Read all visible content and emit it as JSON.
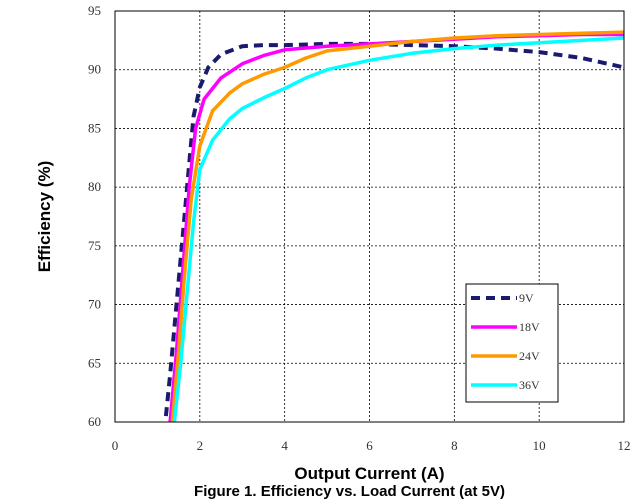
{
  "chart_data": {
    "type": "line",
    "xlabel": "Output Current (A)",
    "ylabel": "Efficiency (%)",
    "caption": "Figure 1. Efficiency vs. Load Current (at 5V)",
    "xlim": [
      0,
      12
    ],
    "ylim": [
      60,
      95
    ],
    "xticks": [
      "0",
      "2",
      "4",
      "6",
      "8",
      "10",
      "12"
    ],
    "yticks": [
      "60",
      "65",
      "70",
      "75",
      "80",
      "85",
      "90",
      "95"
    ],
    "grid": true,
    "legend_position": "bottom-right",
    "series": [
      {
        "name": "9V",
        "color": "#1a1a6e",
        "style": "dashed",
        "points": [
          [
            1.2,
            60.5
          ],
          [
            1.3,
            64
          ],
          [
            1.45,
            70
          ],
          [
            1.6,
            76
          ],
          [
            1.75,
            82
          ],
          [
            1.85,
            86
          ],
          [
            2.0,
            88.5
          ],
          [
            2.2,
            90.2
          ],
          [
            2.5,
            91.3
          ],
          [
            3.0,
            92.0
          ],
          [
            3.5,
            92.1
          ],
          [
            4.0,
            92.1
          ],
          [
            5.0,
            92.2
          ],
          [
            6.0,
            92.2
          ],
          [
            7.0,
            92.1
          ],
          [
            8.0,
            92.0
          ],
          [
            9.0,
            91.8
          ],
          [
            10.0,
            91.5
          ],
          [
            11.0,
            91.0
          ],
          [
            12.0,
            90.2
          ]
        ]
      },
      {
        "name": "18V",
        "color": "#ff00ff",
        "style": "solid",
        "points": [
          [
            1.3,
            60
          ],
          [
            1.45,
            66
          ],
          [
            1.6,
            73
          ],
          [
            1.75,
            80
          ],
          [
            1.9,
            85
          ],
          [
            2.1,
            87.5
          ],
          [
            2.5,
            89.3
          ],
          [
            3.0,
            90.5
          ],
          [
            3.5,
            91.2
          ],
          [
            4.0,
            91.7
          ],
          [
            5.0,
            92.0
          ],
          [
            6.0,
            92.2
          ],
          [
            7.0,
            92.4
          ],
          [
            8.0,
            92.6
          ],
          [
            9.0,
            92.8
          ],
          [
            10.0,
            92.9
          ],
          [
            11.0,
            93.0
          ],
          [
            12.0,
            93.0
          ]
        ]
      },
      {
        "name": "24V",
        "color": "#ff9900",
        "style": "solid",
        "points": [
          [
            1.35,
            60
          ],
          [
            1.5,
            66
          ],
          [
            1.65,
            73
          ],
          [
            1.8,
            79
          ],
          [
            2.0,
            83.5
          ],
          [
            2.3,
            86.5
          ],
          [
            2.7,
            88.0
          ],
          [
            3.0,
            88.8
          ],
          [
            3.5,
            89.6
          ],
          [
            4.0,
            90.2
          ],
          [
            4.5,
            91.0
          ],
          [
            5.0,
            91.6
          ],
          [
            6.0,
            92.0
          ],
          [
            7.0,
            92.4
          ],
          [
            8.0,
            92.7
          ],
          [
            9.0,
            92.9
          ],
          [
            10.0,
            93.0
          ],
          [
            11.0,
            93.1
          ],
          [
            12.0,
            93.2
          ]
        ]
      },
      {
        "name": "36V",
        "color": "#00ffff",
        "style": "solid",
        "points": [
          [
            1.4,
            60
          ],
          [
            1.55,
            65
          ],
          [
            1.7,
            71
          ],
          [
            1.85,
            77
          ],
          [
            2.0,
            81.5
          ],
          [
            2.3,
            84.0
          ],
          [
            2.7,
            85.8
          ],
          [
            3.0,
            86.7
          ],
          [
            3.5,
            87.6
          ],
          [
            4.0,
            88.4
          ],
          [
            4.5,
            89.3
          ],
          [
            5.0,
            90.0
          ],
          [
            6.0,
            90.8
          ],
          [
            7.0,
            91.4
          ],
          [
            8.0,
            91.8
          ],
          [
            9.0,
            92.1
          ],
          [
            10.0,
            92.3
          ],
          [
            11.0,
            92.5
          ],
          [
            12.0,
            92.7
          ]
        ]
      }
    ]
  }
}
